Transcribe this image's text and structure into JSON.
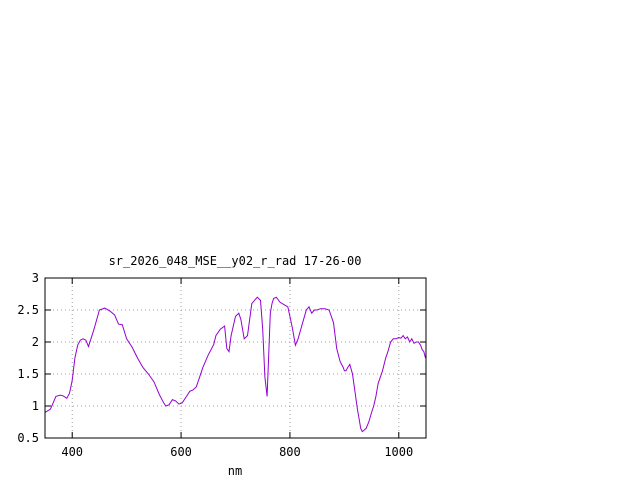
{
  "chart_data": {
    "type": "line",
    "title": "sr_2026_048_MSE__y02_r_rad 17-26-00",
    "xlabel": "nm",
    "ylabel": "",
    "xlim": [
      350,
      1050
    ],
    "ylim": [
      0.5,
      3
    ],
    "xticks": [
      400,
      600,
      800,
      1000
    ],
    "xtick_labels": [
      "400",
      "600",
      "800",
      "1000"
    ],
    "yticks": [
      0.5,
      1,
      1.5,
      2,
      2.5,
      3
    ],
    "ytick_labels": [
      "0.5",
      "1",
      "1.5",
      "2",
      "2.5",
      "3"
    ],
    "grid": true,
    "line_color": "#9400d3",
    "series": [
      {
        "x": [
          350,
          360,
          365,
          370,
          378,
          383,
          390,
          395,
          400,
          405,
          410,
          415,
          420,
          425,
          430,
          440,
          450,
          460,
          470,
          478,
          485,
          492,
          500,
          510,
          520,
          530,
          540,
          550,
          560,
          568,
          572,
          578,
          584,
          590,
          596,
          602,
          610,
          616,
          622,
          628,
          634,
          640,
          650,
          660,
          664,
          672,
          680,
          684,
          688,
          692,
          700,
          706,
          710,
          716,
          722,
          730,
          740,
          746,
          750,
          754,
          758,
          762,
          764,
          767,
          770,
          775,
          782,
          790,
          796,
          800,
          805,
          810,
          815,
          820,
          830,
          835,
          840,
          845,
          850,
          856,
          864,
          872,
          880,
          886,
          892,
          895,
          898,
          900,
          903,
          906,
          910,
          915,
          920,
          924,
          927,
          930,
          933,
          936,
          940,
          945,
          950,
          954,
          958,
          962,
          966,
          970,
          976,
          980,
          985,
          990,
          995,
          1000,
          1004,
          1008,
          1012,
          1016,
          1020,
          1024,
          1028,
          1032,
          1036,
          1040,
          1043,
          1046,
          1049
        ],
        "y": [
          0.9,
          0.95,
          1.05,
          1.15,
          1.17,
          1.16,
          1.12,
          1.2,
          1.4,
          1.75,
          1.95,
          2.03,
          2.05,
          2.03,
          1.93,
          2.2,
          2.5,
          2.53,
          2.48,
          2.42,
          2.28,
          2.27,
          2.05,
          1.92,
          1.75,
          1.6,
          1.5,
          1.38,
          1.18,
          1.05,
          1.0,
          1.02,
          1.1,
          1.08,
          1.03,
          1.05,
          1.15,
          1.23,
          1.25,
          1.3,
          1.45,
          1.6,
          1.8,
          1.96,
          2.1,
          2.2,
          2.25,
          1.9,
          1.85,
          2.1,
          2.4,
          2.45,
          2.35,
          2.05,
          2.1,
          2.6,
          2.7,
          2.65,
          2.2,
          1.45,
          1.15,
          2.0,
          2.45,
          2.6,
          2.68,
          2.7,
          2.62,
          2.58,
          2.55,
          2.4,
          2.2,
          1.95,
          2.05,
          2.2,
          2.5,
          2.55,
          2.45,
          2.5,
          2.5,
          2.52,
          2.52,
          2.5,
          2.3,
          1.9,
          1.7,
          1.65,
          1.6,
          1.55,
          1.55,
          1.6,
          1.65,
          1.5,
          1.2,
          0.95,
          0.8,
          0.65,
          0.6,
          0.62,
          0.65,
          0.75,
          0.9,
          1.0,
          1.15,
          1.35,
          1.45,
          1.55,
          1.75,
          1.85,
          2.0,
          2.05,
          2.05,
          2.07,
          2.06,
          2.1,
          2.05,
          2.08,
          2.0,
          2.05,
          1.98,
          2.0,
          2.0,
          1.95,
          1.88,
          1.85,
          1.75
        ]
      }
    ]
  }
}
